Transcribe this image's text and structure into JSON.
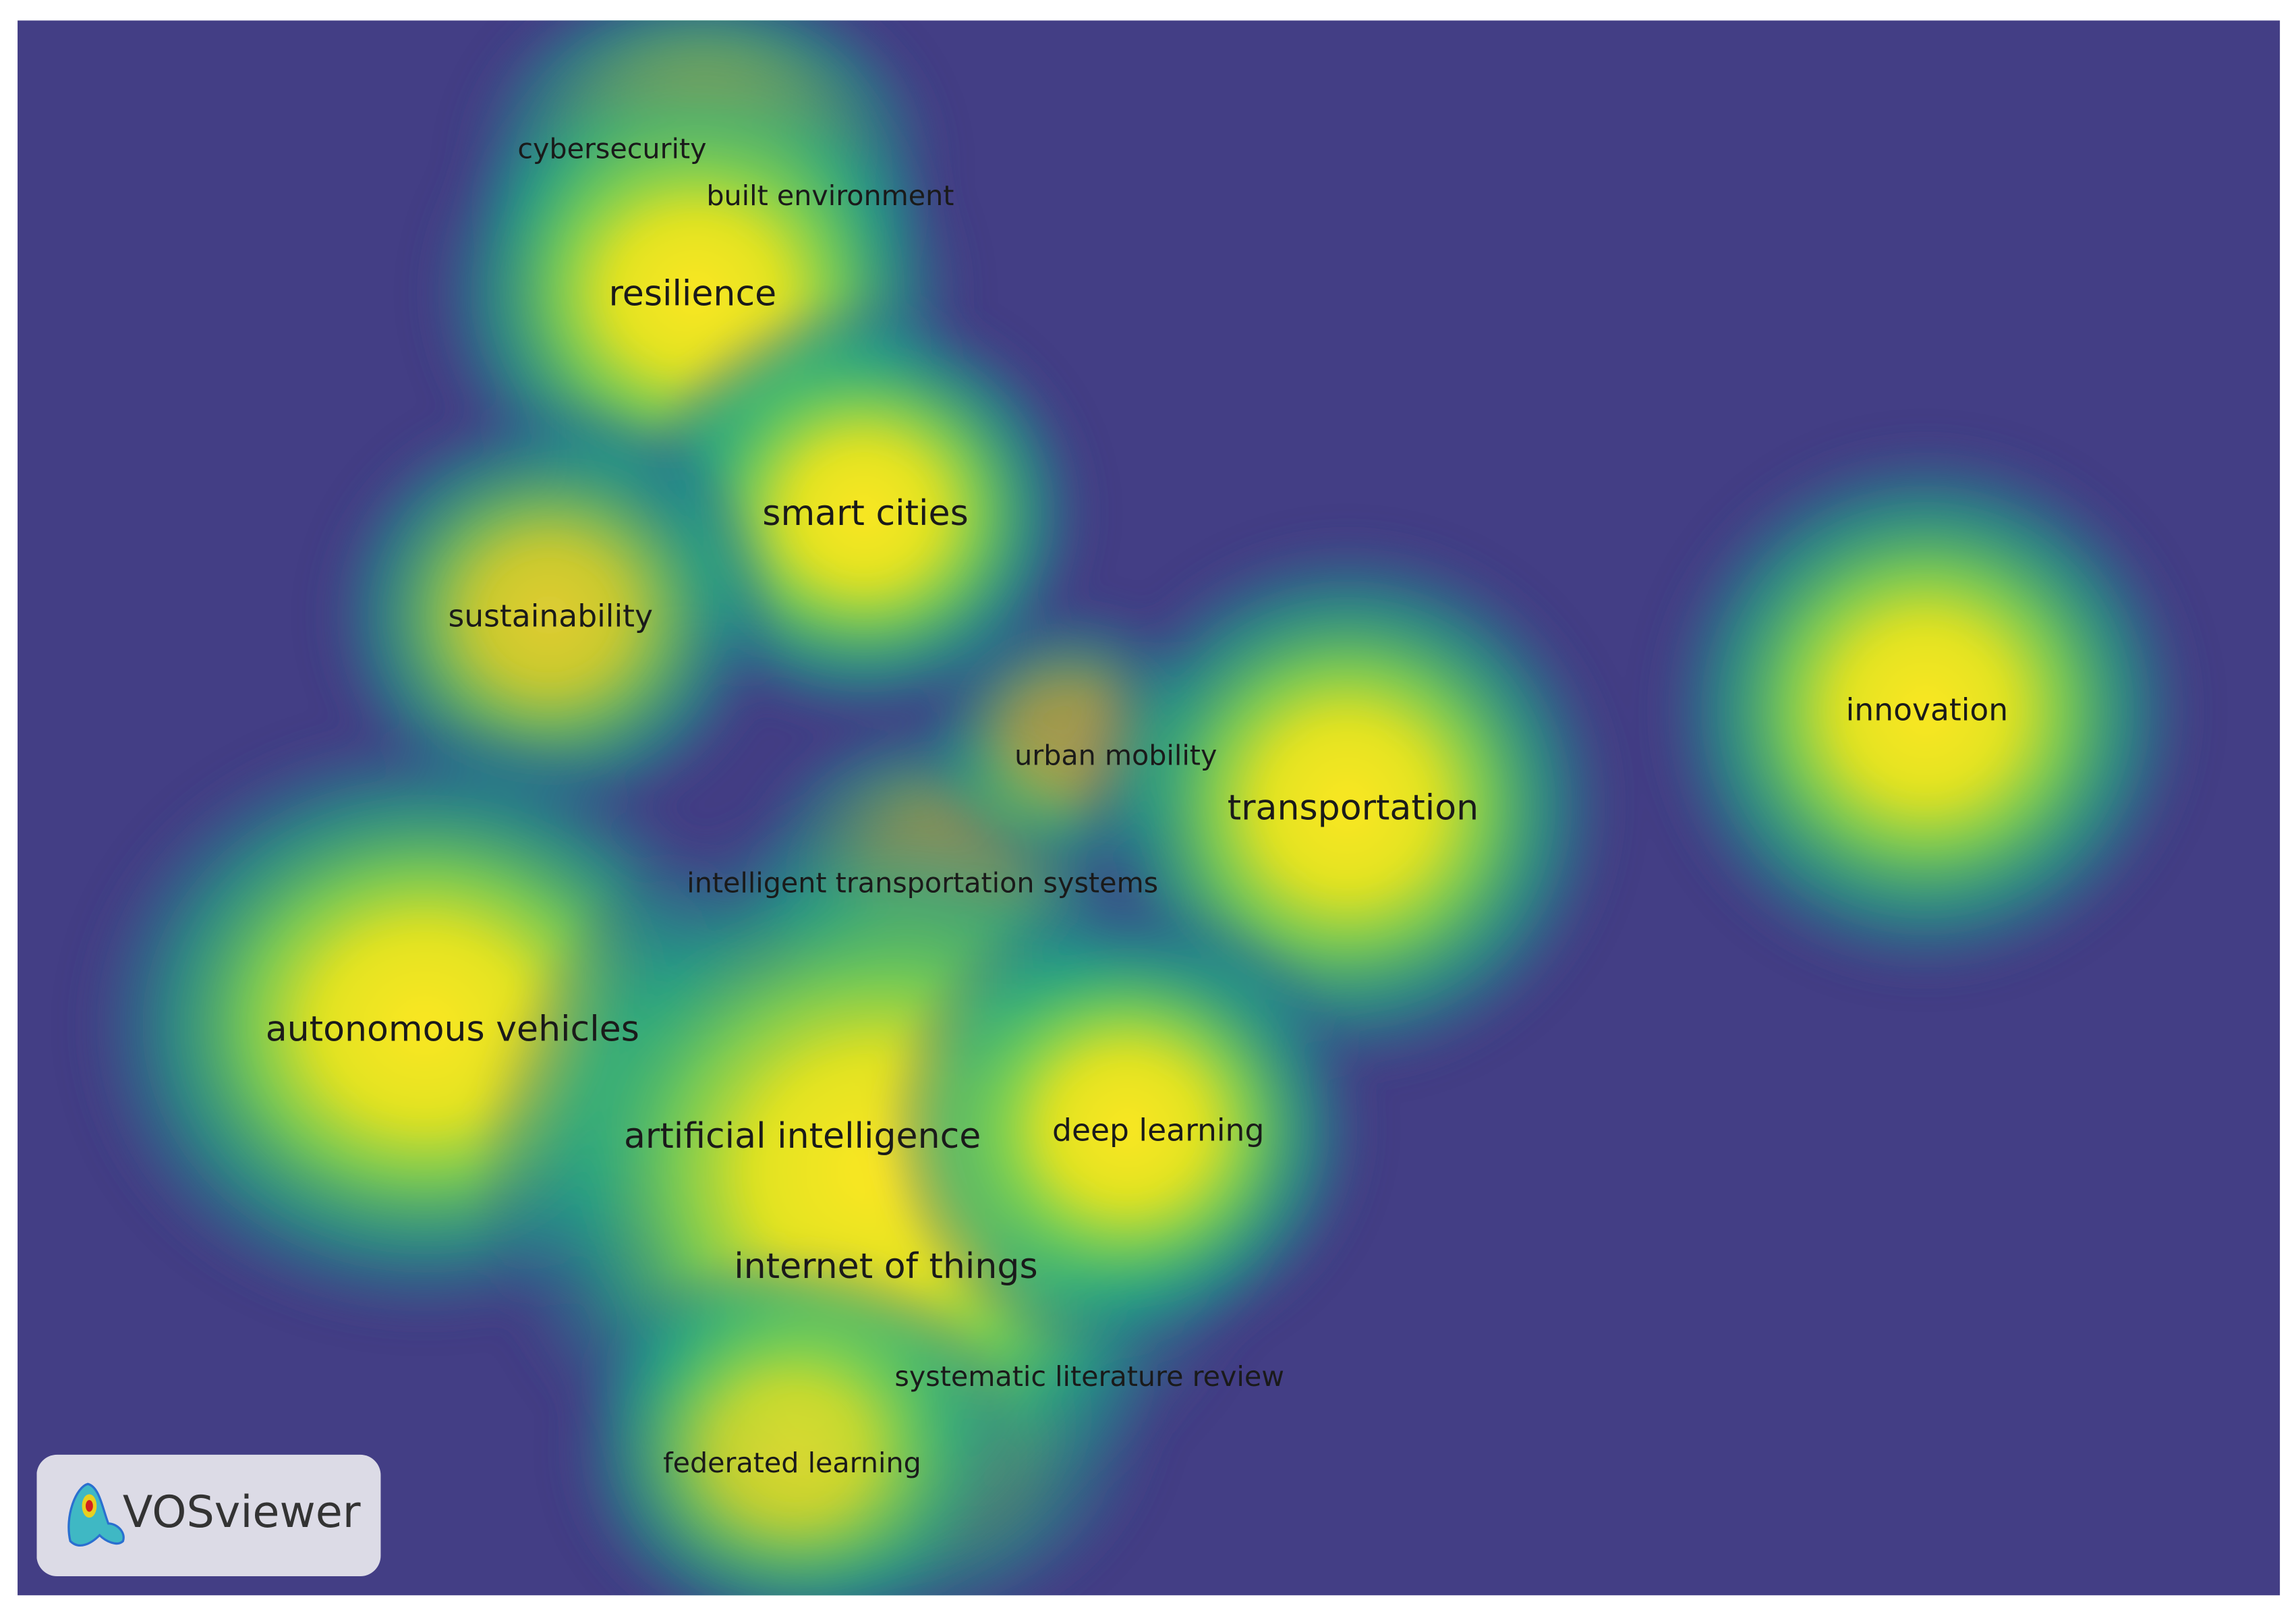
{
  "map": {
    "terms": [
      {
        "label": "cybersecurity"
      },
      {
        "label": "built environment"
      },
      {
        "label": "resilience"
      },
      {
        "label": "smart cities"
      },
      {
        "label": "sustainability"
      },
      {
        "label": "urban mobility"
      },
      {
        "label": "transportation"
      },
      {
        "label": "innovation"
      },
      {
        "label": "intelligent transportation systems"
      },
      {
        "label": "autonomous vehicles"
      },
      {
        "label": "artificial intelligence"
      },
      {
        "label": "deep learning"
      },
      {
        "label": "internet of things"
      },
      {
        "label": "systematic literature review"
      },
      {
        "label": "federated learning"
      }
    ],
    "logo": "VOSviewer"
  }
}
